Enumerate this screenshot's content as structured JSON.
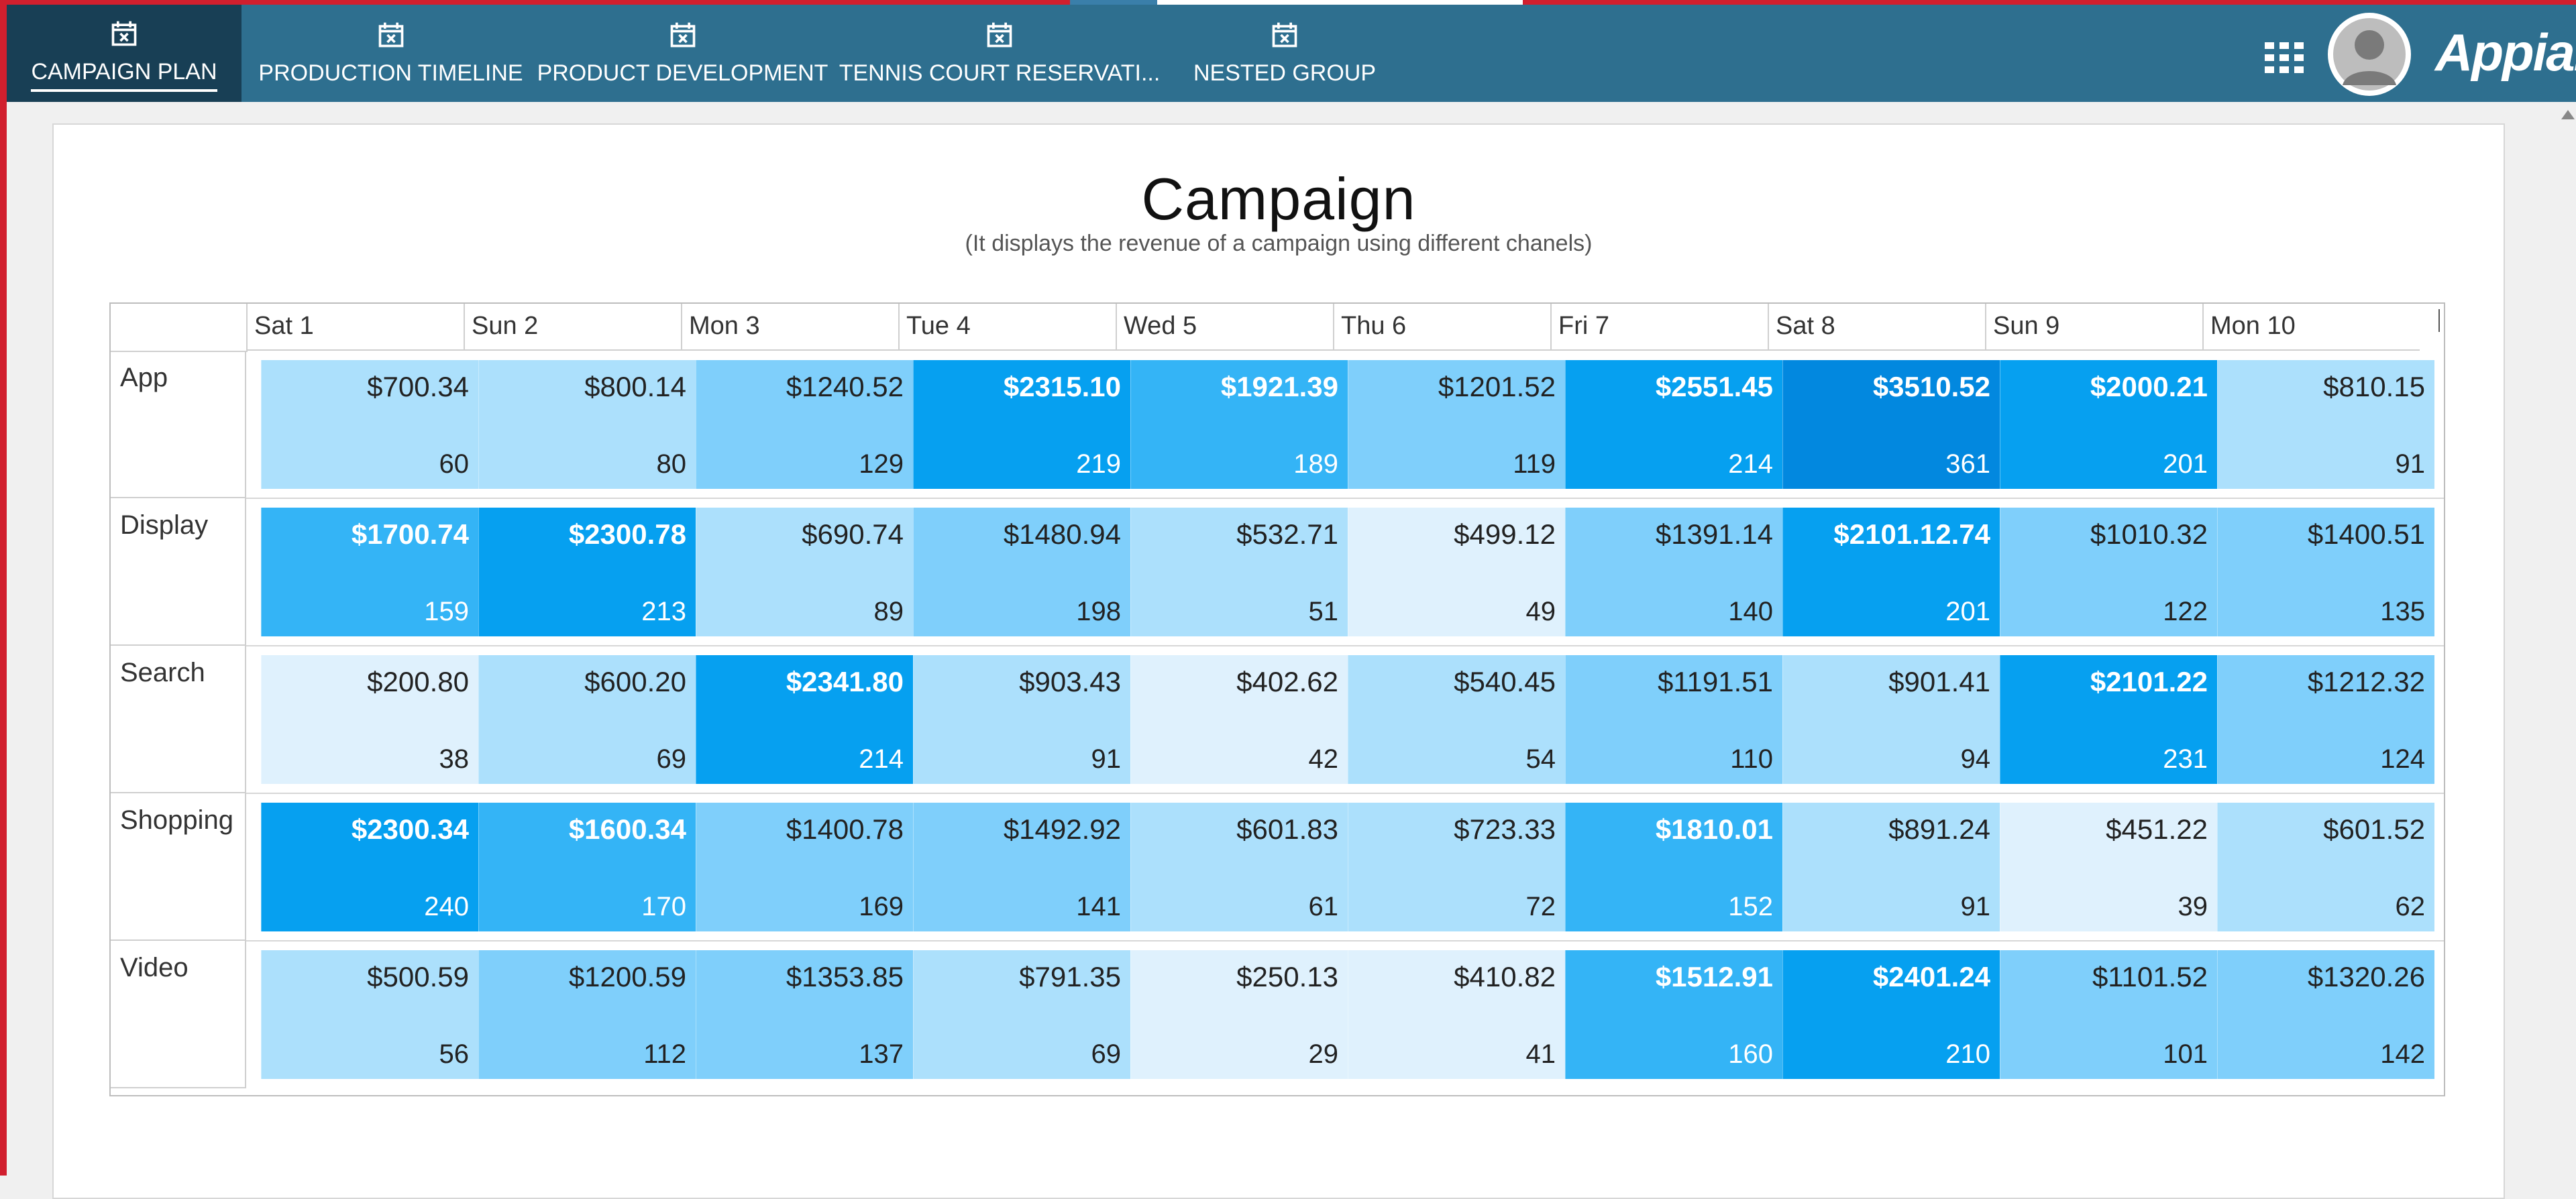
{
  "nav": {
    "tabs": [
      {
        "label": "CAMPAIGN PLAN",
        "active": true
      },
      {
        "label": "PRODUCTION TIMELINE",
        "active": false
      },
      {
        "label": "PRODUCT DEVELOPMENT",
        "active": false
      },
      {
        "label": "TENNIS COURT RESERVATI...",
        "active": false
      },
      {
        "label": "NESTED GROUP",
        "active": false
      }
    ],
    "tab_icon": "calendar-x-icon",
    "apps_icon": "grid-icon",
    "avatar_icon": "user-avatar-icon",
    "logo": "Appian"
  },
  "colors": {
    "frame": "#d11f2e",
    "topbar": "#2e6f8f",
    "active_tab": "#183f55",
    "heat_levels": [
      "#dff1fd",
      "#ace0fc",
      "#7fcffb",
      "#34b4f6",
      "#06a0f0",
      "#0288df"
    ]
  },
  "report": {
    "title": "Campaign",
    "subtitle": "(It displays the revenue of a campaign using different chanels)",
    "days": [
      "Sat 1",
      "Sun 2",
      "Mon 3",
      "Tue 4",
      "Wed 5",
      "Thu 6",
      "Fri 7",
      "Sat 8",
      "Sun 9",
      "Mon 10"
    ],
    "rows": [
      {
        "channel": "App",
        "cells": [
          {
            "revenue": "$700.34",
            "count": "60",
            "level": 1
          },
          {
            "revenue": "$800.14",
            "count": "80",
            "level": 1
          },
          {
            "revenue": "$1240.52",
            "count": "129",
            "level": 2
          },
          {
            "revenue": "$2315.10",
            "count": "219",
            "level": 4
          },
          {
            "revenue": "$1921.39",
            "count": "189",
            "level": 3
          },
          {
            "revenue": "$1201.52",
            "count": "119",
            "level": 2
          },
          {
            "revenue": "$2551.45",
            "count": "214",
            "level": 4
          },
          {
            "revenue": "$3510.52",
            "count": "361",
            "level": 5
          },
          {
            "revenue": "$2000.21",
            "count": "201",
            "level": 4
          },
          {
            "revenue": "$810.15",
            "count": "91",
            "level": 1
          }
        ]
      },
      {
        "channel": "Display",
        "cells": [
          {
            "revenue": "$1700.74",
            "count": "159",
            "level": 3
          },
          {
            "revenue": "$2300.78",
            "count": "213",
            "level": 4
          },
          {
            "revenue": "$690.74",
            "count": "89",
            "level": 1
          },
          {
            "revenue": "$1480.94",
            "count": "198",
            "level": 2
          },
          {
            "revenue": "$532.71",
            "count": "51",
            "level": 1
          },
          {
            "revenue": "$499.12",
            "count": "49",
            "level": 0
          },
          {
            "revenue": "$1391.14",
            "count": "140",
            "level": 2
          },
          {
            "revenue": "$2101.12.74",
            "count": "201",
            "level": 4
          },
          {
            "revenue": "$1010.32",
            "count": "122",
            "level": 2
          },
          {
            "revenue": "$1400.51",
            "count": "135",
            "level": 2
          }
        ]
      },
      {
        "channel": "Search",
        "cells": [
          {
            "revenue": "$200.80",
            "count": "38",
            "level": 0
          },
          {
            "revenue": "$600.20",
            "count": "69",
            "level": 1
          },
          {
            "revenue": "$2341.80",
            "count": "214",
            "level": 4
          },
          {
            "revenue": "$903.43",
            "count": "91",
            "level": 1
          },
          {
            "revenue": "$402.62",
            "count": "42",
            "level": 0
          },
          {
            "revenue": "$540.45",
            "count": "54",
            "level": 1
          },
          {
            "revenue": "$1191.51",
            "count": "110",
            "level": 2
          },
          {
            "revenue": "$901.41",
            "count": "94",
            "level": 1
          },
          {
            "revenue": "$2101.22",
            "count": "231",
            "level": 4
          },
          {
            "revenue": "$1212.32",
            "count": "124",
            "level": 2
          }
        ]
      },
      {
        "channel": "Shopping",
        "cells": [
          {
            "revenue": "$2300.34",
            "count": "240",
            "level": 4
          },
          {
            "revenue": "$1600.34",
            "count": "170",
            "level": 3
          },
          {
            "revenue": "$1400.78",
            "count": "169",
            "level": 2
          },
          {
            "revenue": "$1492.92",
            "count": "141",
            "level": 2
          },
          {
            "revenue": "$601.83",
            "count": "61",
            "level": 1
          },
          {
            "revenue": "$723.33",
            "count": "72",
            "level": 1
          },
          {
            "revenue": "$1810.01",
            "count": "152",
            "level": 3
          },
          {
            "revenue": "$891.24",
            "count": "91",
            "level": 1
          },
          {
            "revenue": "$451.22",
            "count": "39",
            "level": 0
          },
          {
            "revenue": "$601.52",
            "count": "62",
            "level": 1
          }
        ]
      },
      {
        "channel": "Video",
        "cells": [
          {
            "revenue": "$500.59",
            "count": "56",
            "level": 1
          },
          {
            "revenue": "$1200.59",
            "count": "112",
            "level": 2
          },
          {
            "revenue": "$1353.85",
            "count": "137",
            "level": 2
          },
          {
            "revenue": "$791.35",
            "count": "69",
            "level": 1
          },
          {
            "revenue": "$250.13",
            "count": "29",
            "level": 0
          },
          {
            "revenue": "$410.82",
            "count": "41",
            "level": 0
          },
          {
            "revenue": "$1512.91",
            "count": "160",
            "level": 3
          },
          {
            "revenue": "$2401.24",
            "count": "210",
            "level": 4
          },
          {
            "revenue": "$1101.52",
            "count": "101",
            "level": 2
          },
          {
            "revenue": "$1320.26",
            "count": "142",
            "level": 2
          }
        ]
      }
    ]
  }
}
